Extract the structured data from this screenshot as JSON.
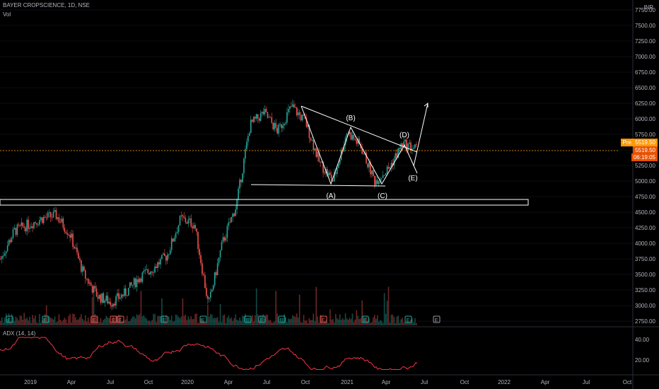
{
  "header": {
    "symbol": "BAYER CROPSCIENCE, 1D, NSE",
    "vol_label": "Vol"
  },
  "currency": "INR",
  "indicator": {
    "label": "ADX (14, 14)",
    "ticks": [
      "40.00",
      "20.00"
    ]
  },
  "price_axis": {
    "ticks": [
      "7750.00",
      "7500.00",
      "7250.00",
      "7000.00",
      "6750.00",
      "6500.00",
      "6250.00",
      "6000.00",
      "5750.00",
      "5500.00",
      "5250.00",
      "5000.00",
      "4750.00",
      "4500.00",
      "4250.00",
      "4000.00",
      "3750.00",
      "3500.00",
      "3250.00",
      "3000.00",
      "2750.00"
    ],
    "range": [
      2700,
      7800
    ]
  },
  "time_axis": {
    "labels": [
      "2019",
      "Apr",
      "Jul",
      "Oct",
      "2020",
      "Apr",
      "Jul",
      "Oct",
      "2021",
      "Apr",
      "Jul",
      "Oct",
      "2022",
      "Apr",
      "Jul",
      "Oct"
    ]
  },
  "price_tags": {
    "pre_label": "Pre",
    "pre_value": "5519.50",
    "last_value": "5519.50",
    "countdown": "06:19:05"
  },
  "wave_labels": [
    "(A)",
    "(B)",
    "(C)",
    "(D)",
    "(E)"
  ],
  "colors": {
    "up": "#26a69a",
    "down": "#ef5350",
    "price_tag": "#ff9800",
    "adx": "#f23645",
    "annotation": "#ffffff",
    "background": "#000000"
  },
  "chart_data": {
    "type": "line",
    "title": "BAYER CROPSCIENCE, 1D, NSE",
    "note": "approximate closing price path read from candlesticks (INR)",
    "x": [
      "2018-12",
      "2019-01",
      "2019-02",
      "2019-03",
      "2019-04",
      "2019-05",
      "2019-06",
      "2019-07",
      "2019-08",
      "2019-09",
      "2019-10",
      "2019-11",
      "2019-12",
      "2020-01",
      "2020-02",
      "2020-03",
      "2020-04",
      "2020-05",
      "2020-06",
      "2020-07",
      "2020-08",
      "2020-09",
      "2020-10",
      "2020-11",
      "2020-12",
      "2021-01",
      "2021-02",
      "2021-03",
      "2021-04",
      "2021-05",
      "2021-06"
    ],
    "series": [
      {
        "values": [
          3750,
          4200,
          4300,
          4400,
          4450,
          4150,
          3500,
          3150,
          3050,
          3200,
          3450,
          3600,
          3800,
          4400,
          4300,
          3000,
          4000,
          4600,
          5900,
          6100,
          5800,
          6200,
          5950,
          5300,
          5000,
          5800,
          5550,
          5000,
          5200,
          5600,
          5520
        ]
      }
    ]
  }
}
